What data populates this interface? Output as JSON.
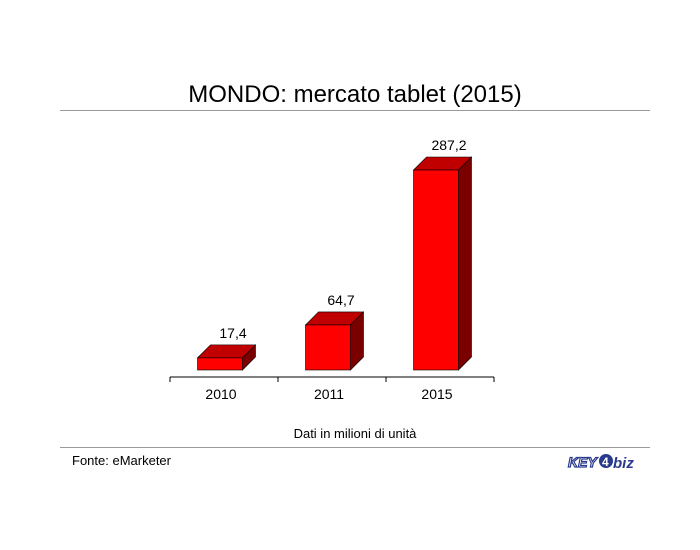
{
  "chart_data": {
    "type": "bar",
    "title": "MONDO: mercato tablet (2015)",
    "categories": [
      "2010",
      "2011",
      "2015"
    ],
    "values": [
      17.4,
      64.7,
      287.2
    ],
    "value_labels": [
      "17,4",
      "64,7",
      "287,2"
    ],
    "caption": "Dati in milioni di unità",
    "bar_style": "3d",
    "grid": false,
    "legend": "none",
    "ylim": [
      0,
      287.2
    ]
  },
  "colors": {
    "bar_front": "#ff0000",
    "bar_top": "#c00000",
    "bar_side": "#7a0000",
    "logo_blue": "#2a3a8c"
  },
  "footer": {
    "source": "Fonte: eMarketer",
    "logo_text": "KEY4biz"
  }
}
